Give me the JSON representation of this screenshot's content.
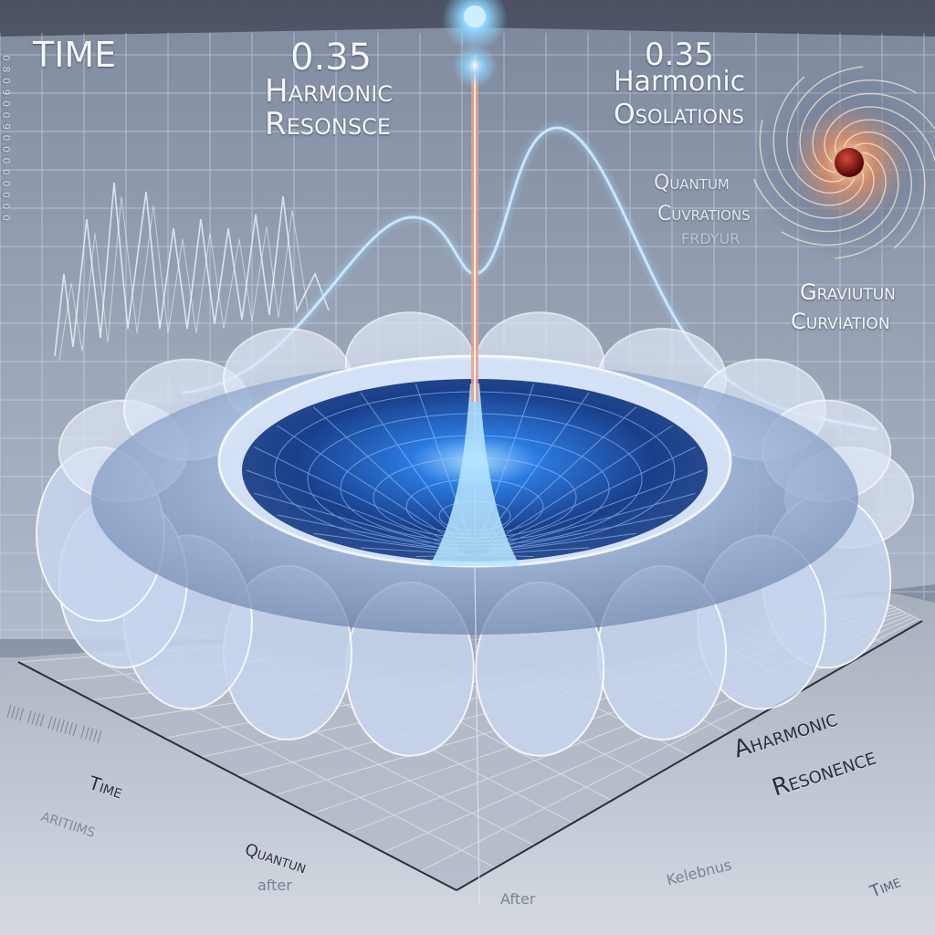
{
  "labels": {
    "time_top": "TIME",
    "value_center": "0.35",
    "harmonic_center": "Harmonic",
    "resonsce_center": "Resonsce",
    "value_right": "0.35",
    "harmonic_right": "Harmonic",
    "osolations": "Osolations",
    "quantum_right": "Quantum",
    "cuvrations": "Cuvrations",
    "smudge_right": "FRDYUR",
    "graviutun": "Graviutun",
    "curviation": "Curviation",
    "aharmonic": "Aharmonic",
    "resonence": "Resonence",
    "time_floor": "Time",
    "gibberish_floor": "aritiims",
    "quantun_floor": "Quantun",
    "after_left": "after",
    "after_center": "After",
    "kelebnus": "Kelebnus",
    "time_right": "Time",
    "left_axis_glyphs": "0 8 0 9 0 0 9 0 0 0 0 0 0 0 0",
    "left_floor_glyphs": "|||| |||| ||||||| |||||"
  },
  "colors": {
    "background": "#3d4452",
    "panel": "#9aa6bb",
    "grid": "#c9d4e6",
    "funnel_core": "#1f5fc9",
    "glow": "#9fd8ff",
    "floor": "#bfc6d2",
    "orb_core": "#7a0f0f"
  }
}
